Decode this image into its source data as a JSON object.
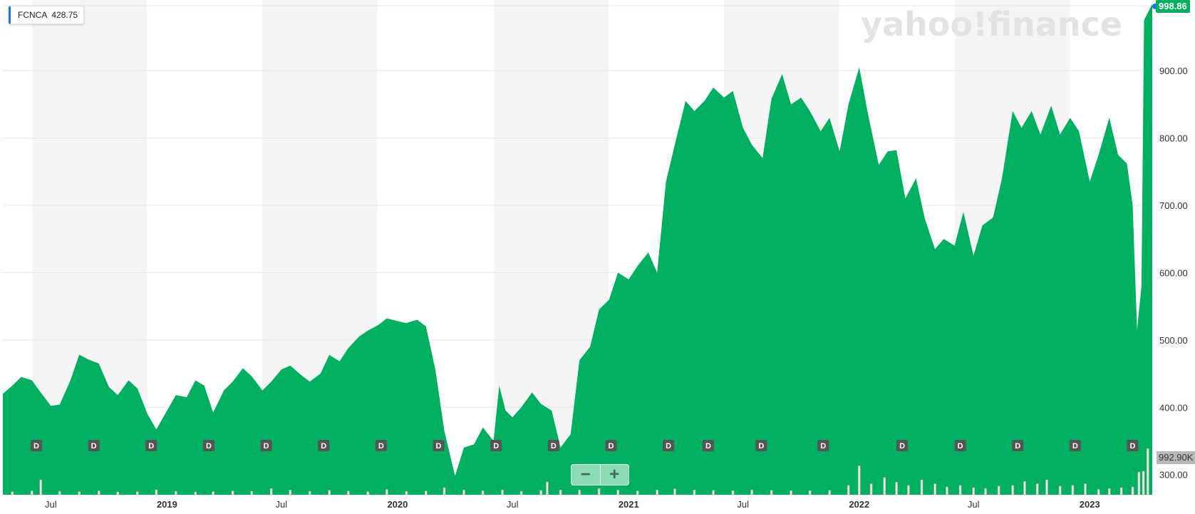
{
  "legend": {
    "symbol": "FCNCA",
    "value": "428.75"
  },
  "watermark": "yahoo!finance",
  "last_price_label": "998.86",
  "volume_label": "992.90K",
  "zoom": {
    "minus": "−",
    "plus": "+"
  },
  "colors": {
    "area": "#00b060",
    "band": "#f5f5f5",
    "grid": "#e8e8e8",
    "dividend": "#555555",
    "accent": "#1a73e8"
  },
  "chart_data": {
    "type": "area",
    "x_range": [
      "2018-04-16",
      "2023-04-10"
    ],
    "ylim": [
      270,
      1005
    ],
    "y_ticks": [
      300,
      400,
      500,
      600,
      700,
      800,
      900
    ],
    "y_tick_labels": [
      "300.00",
      "400.00",
      "500.00",
      "600.00",
      "700.00",
      "800.00",
      "900.00"
    ],
    "x_tick_labels": [
      {
        "date": "2018-07-01",
        "label": "Jul",
        "bold": false
      },
      {
        "date": "2019-01-01",
        "label": "2019",
        "bold": true
      },
      {
        "date": "2019-07-01",
        "label": "Jul",
        "bold": false
      },
      {
        "date": "2020-01-01",
        "label": "2020",
        "bold": true
      },
      {
        "date": "2020-07-01",
        "label": "Jul",
        "bold": false
      },
      {
        "date": "2021-01-01",
        "label": "2021",
        "bold": true
      },
      {
        "date": "2021-07-01",
        "label": "Jul",
        "bold": false
      },
      {
        "date": "2022-01-01",
        "label": "2022",
        "bold": true
      },
      {
        "date": "2022-07-01",
        "label": "Jul",
        "bold": false
      },
      {
        "date": "2023-01-01",
        "label": "2023",
        "bold": true
      }
    ],
    "shaded_bands": [
      [
        "2018-06-01",
        "2018-11-30"
      ],
      [
        "2019-06-01",
        "2019-11-30"
      ],
      [
        "2020-06-01",
        "2020-11-30"
      ],
      [
        "2021-06-01",
        "2021-11-30"
      ],
      [
        "2022-06-01",
        "2022-11-30"
      ]
    ],
    "dividend_marker_label": "D",
    "dividends": [
      "2018-06-08",
      "2018-09-07",
      "2018-12-07",
      "2019-03-08",
      "2019-06-07",
      "2019-09-06",
      "2019-12-06",
      "2020-03-06",
      "2020-06-05",
      "2020-09-04",
      "2020-12-04",
      "2021-03-05",
      "2021-05-07",
      "2021-07-30",
      "2021-11-05",
      "2022-03-10",
      "2022-06-10",
      "2022-09-09",
      "2022-12-09",
      "2023-03-10"
    ],
    "price_series": {
      "name": "FCNCA",
      "points": [
        [
          "2018-04-16",
          420
        ],
        [
          "2018-05-01",
          432
        ],
        [
          "2018-05-15",
          445
        ],
        [
          "2018-06-01",
          440
        ],
        [
          "2018-06-15",
          422
        ],
        [
          "2018-07-01",
          402
        ],
        [
          "2018-07-15",
          404
        ],
        [
          "2018-08-01",
          440
        ],
        [
          "2018-08-15",
          478
        ],
        [
          "2018-09-01",
          470
        ],
        [
          "2018-09-15",
          465
        ],
        [
          "2018-10-01",
          430
        ],
        [
          "2018-10-15",
          418
        ],
        [
          "2018-11-01",
          440
        ],
        [
          "2018-11-15",
          428
        ],
        [
          "2018-12-01",
          390
        ],
        [
          "2018-12-15",
          367
        ],
        [
          "2019-01-01",
          395
        ],
        [
          "2019-01-15",
          418
        ],
        [
          "2019-02-01",
          415
        ],
        [
          "2019-02-15",
          440
        ],
        [
          "2019-03-01",
          432
        ],
        [
          "2019-03-15",
          392
        ],
        [
          "2019-04-01",
          425
        ],
        [
          "2019-04-15",
          438
        ],
        [
          "2019-05-01",
          458
        ],
        [
          "2019-05-15",
          446
        ],
        [
          "2019-06-01",
          425
        ],
        [
          "2019-06-15",
          438
        ],
        [
          "2019-07-01",
          456
        ],
        [
          "2019-07-15",
          462
        ],
        [
          "2019-08-01",
          448
        ],
        [
          "2019-08-15",
          438
        ],
        [
          "2019-09-01",
          450
        ],
        [
          "2019-09-15",
          478
        ],
        [
          "2019-10-01",
          468
        ],
        [
          "2019-10-15",
          488
        ],
        [
          "2019-11-01",
          505
        ],
        [
          "2019-11-15",
          514
        ],
        [
          "2019-12-01",
          522
        ],
        [
          "2019-12-15",
          532
        ],
        [
          "2020-01-01",
          528
        ],
        [
          "2020-01-15",
          525
        ],
        [
          "2020-02-01",
          530
        ],
        [
          "2020-02-15",
          520
        ],
        [
          "2020-03-01",
          455
        ],
        [
          "2020-03-15",
          365
        ],
        [
          "2020-04-01",
          298
        ],
        [
          "2020-04-15",
          340
        ],
        [
          "2020-05-01",
          345
        ],
        [
          "2020-05-15",
          370
        ],
        [
          "2020-06-01",
          350
        ],
        [
          "2020-06-10",
          432
        ],
        [
          "2020-06-20",
          395
        ],
        [
          "2020-07-01",
          385
        ],
        [
          "2020-07-15",
          400
        ],
        [
          "2020-08-01",
          422
        ],
        [
          "2020-08-15",
          405
        ],
        [
          "2020-09-01",
          395
        ],
        [
          "2020-09-15",
          340
        ],
        [
          "2020-10-01",
          360
        ],
        [
          "2020-10-15",
          470
        ],
        [
          "2020-11-01",
          490
        ],
        [
          "2020-11-15",
          545
        ],
        [
          "2020-12-01",
          560
        ],
        [
          "2020-12-15",
          600
        ],
        [
          "2021-01-01",
          590
        ],
        [
          "2021-01-15",
          610
        ],
        [
          "2021-02-01",
          630
        ],
        [
          "2021-02-15",
          600
        ],
        [
          "2021-03-01",
          735
        ],
        [
          "2021-03-15",
          790
        ],
        [
          "2021-04-01",
          855
        ],
        [
          "2021-04-15",
          840
        ],
        [
          "2021-05-01",
          855
        ],
        [
          "2021-05-15",
          875
        ],
        [
          "2021-06-01",
          860
        ],
        [
          "2021-06-15",
          870
        ],
        [
          "2021-07-01",
          815
        ],
        [
          "2021-07-15",
          790
        ],
        [
          "2021-08-01",
          770
        ],
        [
          "2021-08-15",
          858
        ],
        [
          "2021-09-01",
          895
        ],
        [
          "2021-09-15",
          850
        ],
        [
          "2021-10-01",
          860
        ],
        [
          "2021-10-15",
          840
        ],
        [
          "2021-11-01",
          810
        ],
        [
          "2021-11-15",
          830
        ],
        [
          "2021-12-01",
          780
        ],
        [
          "2021-12-15",
          850
        ],
        [
          "2022-01-01",
          905
        ],
        [
          "2022-01-15",
          835
        ],
        [
          "2022-02-01",
          760
        ],
        [
          "2022-02-15",
          780
        ],
        [
          "2022-03-01",
          782
        ],
        [
          "2022-03-15",
          710
        ],
        [
          "2022-04-01",
          740
        ],
        [
          "2022-04-15",
          680
        ],
        [
          "2022-05-01",
          635
        ],
        [
          "2022-05-15",
          650
        ],
        [
          "2022-06-01",
          640
        ],
        [
          "2022-06-15",
          690
        ],
        [
          "2022-07-01",
          625
        ],
        [
          "2022-07-15",
          670
        ],
        [
          "2022-08-01",
          682
        ],
        [
          "2022-08-15",
          740
        ],
        [
          "2022-09-01",
          840
        ],
        [
          "2022-09-15",
          815
        ],
        [
          "2022-10-01",
          840
        ],
        [
          "2022-10-15",
          805
        ],
        [
          "2022-11-01",
          848
        ],
        [
          "2022-11-15",
          805
        ],
        [
          "2022-12-01",
          830
        ],
        [
          "2022-12-15",
          810
        ],
        [
          "2023-01-01",
          735
        ],
        [
          "2023-01-15",
          775
        ],
        [
          "2023-02-01",
          830
        ],
        [
          "2023-02-15",
          775
        ],
        [
          "2023-03-01",
          762
        ],
        [
          "2023-03-10",
          700
        ],
        [
          "2023-03-17",
          515
        ],
        [
          "2023-03-24",
          580
        ],
        [
          "2023-03-28",
          975
        ],
        [
          "2023-04-10",
          998.86
        ]
      ]
    },
    "volume_series": {
      "name": "Volume",
      "comment_scale": "relative",
      "bars": [
        [
          "2018-05-01",
          0.2
        ],
        [
          "2018-06-01",
          0.25
        ],
        [
          "2018-06-15",
          0.95
        ],
        [
          "2018-07-15",
          0.22
        ],
        [
          "2018-08-15",
          0.2
        ],
        [
          "2018-09-15",
          0.25
        ],
        [
          "2018-10-15",
          0.18
        ],
        [
          "2018-11-15",
          0.2
        ],
        [
          "2018-12-15",
          0.32
        ],
        [
          "2019-01-15",
          0.22
        ],
        [
          "2019-02-15",
          0.18
        ],
        [
          "2019-03-15",
          0.2
        ],
        [
          "2019-04-15",
          0.24
        ],
        [
          "2019-05-15",
          0.22
        ],
        [
          "2019-06-15",
          0.4
        ],
        [
          "2019-07-15",
          0.3
        ],
        [
          "2019-08-15",
          0.22
        ],
        [
          "2019-09-15",
          0.28
        ],
        [
          "2019-10-15",
          0.24
        ],
        [
          "2019-11-15",
          0.2
        ],
        [
          "2019-12-15",
          0.34
        ],
        [
          "2020-01-15",
          0.22
        ],
        [
          "2020-02-15",
          0.24
        ],
        [
          "2020-03-15",
          0.45
        ],
        [
          "2020-04-15",
          0.3
        ],
        [
          "2020-05-15",
          0.25
        ],
        [
          "2020-06-15",
          0.3
        ],
        [
          "2020-07-15",
          0.22
        ],
        [
          "2020-08-15",
          0.28
        ],
        [
          "2020-08-25",
          0.82
        ],
        [
          "2020-09-15",
          0.3
        ],
        [
          "2020-10-15",
          0.3
        ],
        [
          "2020-11-15",
          0.4
        ],
        [
          "2020-12-15",
          0.3
        ],
        [
          "2021-01-15",
          0.24
        ],
        [
          "2021-02-15",
          0.3
        ],
        [
          "2021-03-15",
          0.38
        ],
        [
          "2021-04-15",
          0.3
        ],
        [
          "2021-05-15",
          0.28
        ],
        [
          "2021-06-15",
          0.26
        ],
        [
          "2021-07-15",
          0.3
        ],
        [
          "2021-08-15",
          0.28
        ],
        [
          "2021-09-15",
          0.26
        ],
        [
          "2021-10-15",
          0.26
        ],
        [
          "2021-11-15",
          0.28
        ],
        [
          "2021-12-15",
          0.6
        ],
        [
          "2022-01-01",
          1.85
        ],
        [
          "2022-01-20",
          0.7
        ],
        [
          "2022-02-10",
          1.1
        ],
        [
          "2022-03-01",
          0.8
        ],
        [
          "2022-03-20",
          0.6
        ],
        [
          "2022-04-10",
          0.95
        ],
        [
          "2022-05-01",
          0.7
        ],
        [
          "2022-05-20",
          0.5
        ],
        [
          "2022-06-10",
          0.6
        ],
        [
          "2022-07-01",
          0.45
        ],
        [
          "2022-07-20",
          0.4
        ],
        [
          "2022-08-10",
          0.55
        ],
        [
          "2022-09-01",
          0.6
        ],
        [
          "2022-09-20",
          0.85
        ],
        [
          "2022-10-10",
          0.7
        ],
        [
          "2022-10-25",
          0.95
        ],
        [
          "2022-11-15",
          0.55
        ],
        [
          "2022-12-05",
          0.6
        ],
        [
          "2022-12-25",
          0.7
        ],
        [
          "2023-01-15",
          0.35
        ],
        [
          "2023-02-01",
          0.4
        ],
        [
          "2023-02-20",
          0.45
        ],
        [
          "2023-03-10",
          0.5
        ],
        [
          "2023-03-20",
          1.45
        ],
        [
          "2023-03-27",
          1.5
        ],
        [
          "2023-04-03",
          2.95
        ]
      ]
    }
  }
}
